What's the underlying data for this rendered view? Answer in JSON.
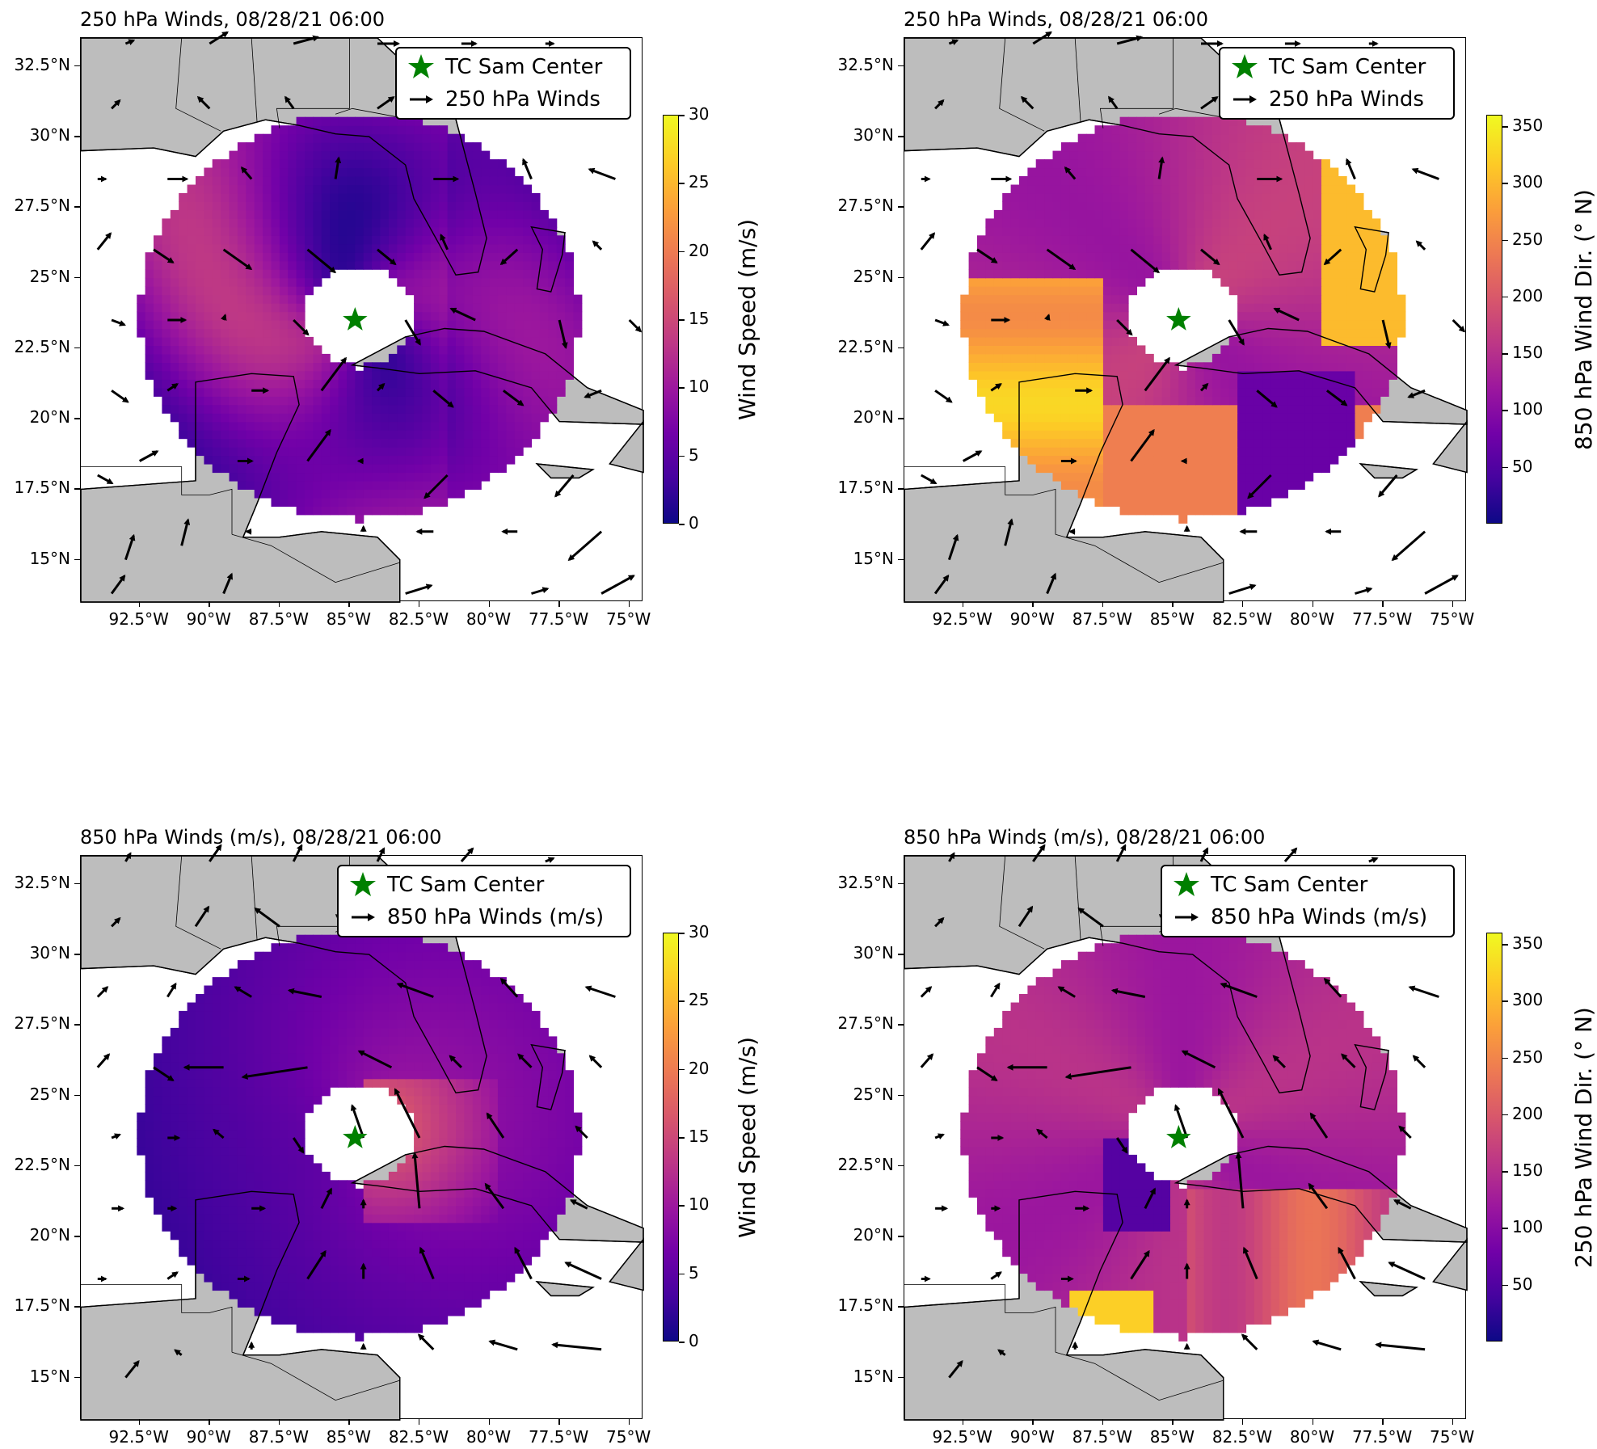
{
  "panels": [
    {
      "title": "250 hPa Winds, 08/28/21 06:00",
      "legend": {
        "center_label": "TC Sam Center",
        "vector_label": "250 hPa Winds"
      },
      "colorbar": {
        "label": "Wind Speed (m/s)",
        "ticks": [
          "0",
          "5",
          "10",
          "15",
          "20",
          "25",
          "30"
        ],
        "range": [
          0,
          30
        ]
      },
      "field": "speed250"
    },
    {
      "title": "250 hPa Winds, 08/28/21 06:00",
      "legend": {
        "center_label": "TC Sam Center",
        "vector_label": "250 hPa Winds"
      },
      "colorbar": {
        "label": "850 hPa Wind Dir. (° N)",
        "ticks": [
          "50",
          "100",
          "150",
          "200",
          "250",
          "300",
          "350"
        ],
        "range": [
          0,
          360
        ]
      },
      "field": "dir850"
    },
    {
      "title": "850 hPa Winds (m/s), 08/28/21 06:00",
      "legend": {
        "center_label": "TC Sam Center",
        "vector_label": "850 hPa Winds (m/s)"
      },
      "colorbar": {
        "label": "Wind Speed (m/s)",
        "ticks": [
          "0",
          "5",
          "10",
          "15",
          "20",
          "25",
          "30"
        ],
        "range": [
          0,
          30
        ]
      },
      "field": "speed850"
    },
    {
      "title": "850 hPa Winds (m/s), 08/28/21 06:00",
      "legend": {
        "center_label": "TC Sam Center",
        "vector_label": "850 hPa Winds (m/s)"
      },
      "colorbar": {
        "label": "250 hPa Wind Dir. (° N)",
        "ticks": [
          "50",
          "100",
          "150",
          "200",
          "250",
          "300",
          "350"
        ],
        "range": [
          0,
          360
        ]
      },
      "field": "dir250"
    }
  ],
  "axes": {
    "lat_labels": [
      "32.5°N",
      "30°N",
      "27.5°N",
      "25°N",
      "22.5°N",
      "20°N",
      "17.5°N",
      "15°N"
    ],
    "lon_labels": [
      "92.5°W",
      "90°W",
      "87.5°W",
      "85°W",
      "82.5°W",
      "80°W",
      "77.5°W",
      "75°W"
    ],
    "lat_range": [
      13.5,
      33.5
    ],
    "lon_range": [
      -94.6,
      -74.5
    ]
  },
  "storm_center": {
    "lat": 23.5,
    "lon": -84.8
  },
  "colors": {
    "land": "#bdbdbd",
    "ocean": "#ffffff",
    "star": "#008000",
    "colormap": "plasma"
  }
}
